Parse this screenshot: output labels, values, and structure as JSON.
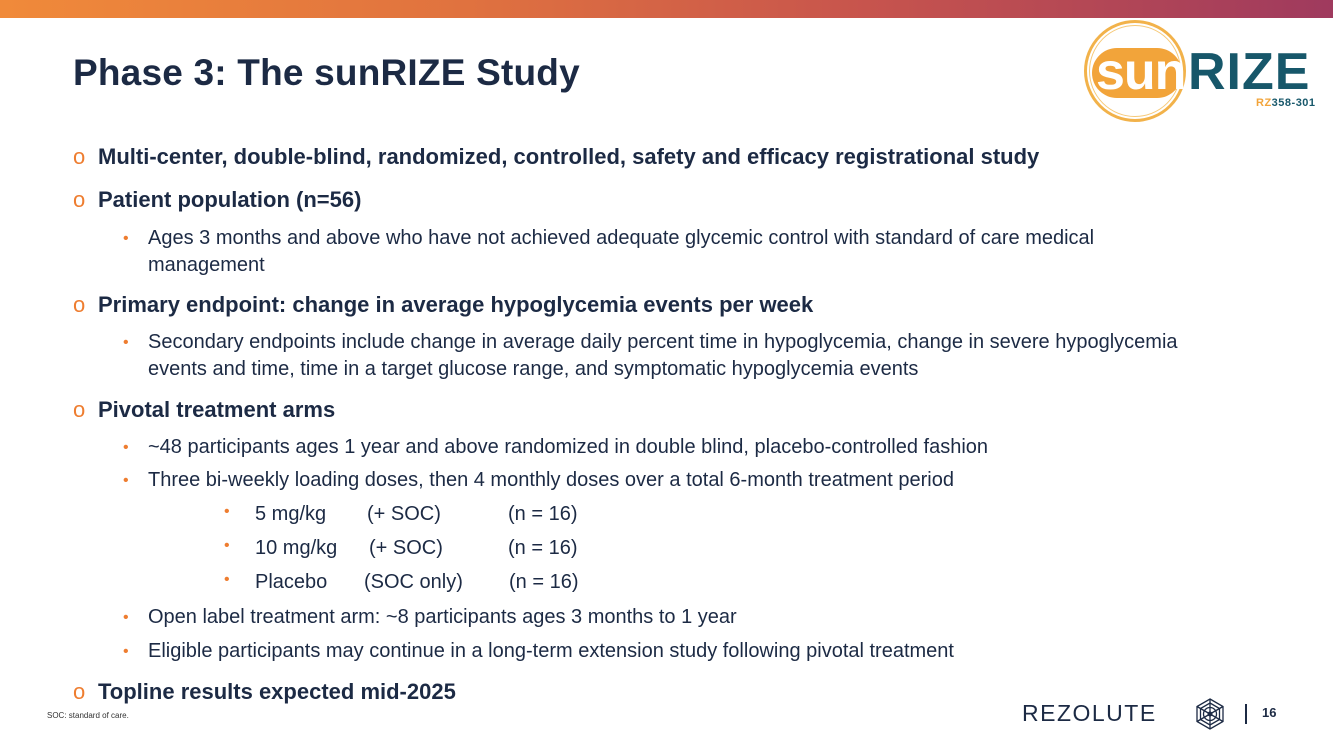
{
  "title": "Phase 3: The sunRIZE Study",
  "logo": {
    "sun": "sun",
    "rize": "RIZE",
    "code_prefix": "RZ",
    "code_suffix": "358-301"
  },
  "bullets": {
    "b1": "Multi-center, double-blind, randomized, controlled, safety and efficacy registrational study",
    "b2": "Patient population (n=56)",
    "b2_sub1": "Ages 3 months and above who have not achieved adequate glycemic control with standard of care medical management",
    "b3": "Primary endpoint: change in average hypoglycemia events per week",
    "b3_sub1": "Secondary endpoints include change in average daily percent time in hypoglycemia, change in severe hypoglycemia events and time, time in a target glucose range, and symptomatic hypoglycemia events",
    "b4": "Pivotal treatment arms",
    "b4_sub1": "~48 participants ages 1 year and above randomized in double blind, placebo-controlled fashion",
    "b4_sub2": "Three bi-weekly loading doses, then 4 monthly doses over a total 6-month treatment period",
    "arms": [
      {
        "dose": "5 mg/kg",
        "soc": "(+ SOC)",
        "n": "(n = 16)"
      },
      {
        "dose": "10 mg/kg",
        "soc": "(+ SOC)",
        "n": "(n = 16)"
      },
      {
        "dose": "Placebo",
        "soc": "(SOC only)",
        "n": "(n = 16)"
      }
    ],
    "b4_sub3": "Open label treatment arm: ~8 participants ages 3 months to 1 year",
    "b4_sub4": "Eligible participants may continue in a long-term extension study following pivotal treatment",
    "b5": "Topline results expected mid-2025"
  },
  "marker_l1": "o",
  "marker_l2": "•",
  "footnote": "SOC: standard of care.",
  "footer": {
    "brand": "REZOLUTE",
    "page_number": "16"
  },
  "colors": {
    "accent": "#ee7d30",
    "navy": "#1c2a44",
    "teal": "#17576a",
    "sun": "#f2a43a"
  }
}
